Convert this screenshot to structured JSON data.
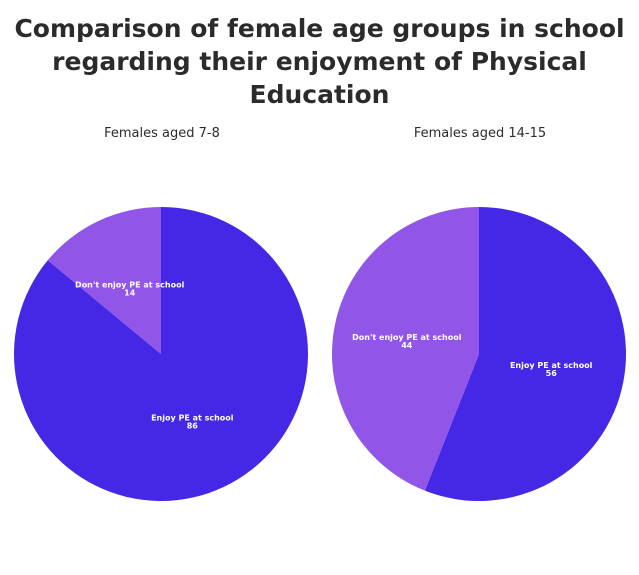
{
  "title": "Comparison of female age groups in school regarding their enjoyment of Physical Education",
  "chart_data": [
    {
      "type": "pie",
      "title": "Females aged 7-8",
      "slices": [
        {
          "label": "Enjoy PE at school",
          "value": 86,
          "color": "#4428e6"
        },
        {
          "label": "Don't enjoy PE at school",
          "value": 14,
          "color": "#9156e8"
        }
      ]
    },
    {
      "type": "pie",
      "title": "Females aged 14-15",
      "slices": [
        {
          "label": "Enjoy PE at school",
          "value": 56,
          "color": "#4428e6"
        },
        {
          "label": "Don't enjoy PE at school",
          "value": 44,
          "color": "#9156e8"
        }
      ]
    }
  ]
}
